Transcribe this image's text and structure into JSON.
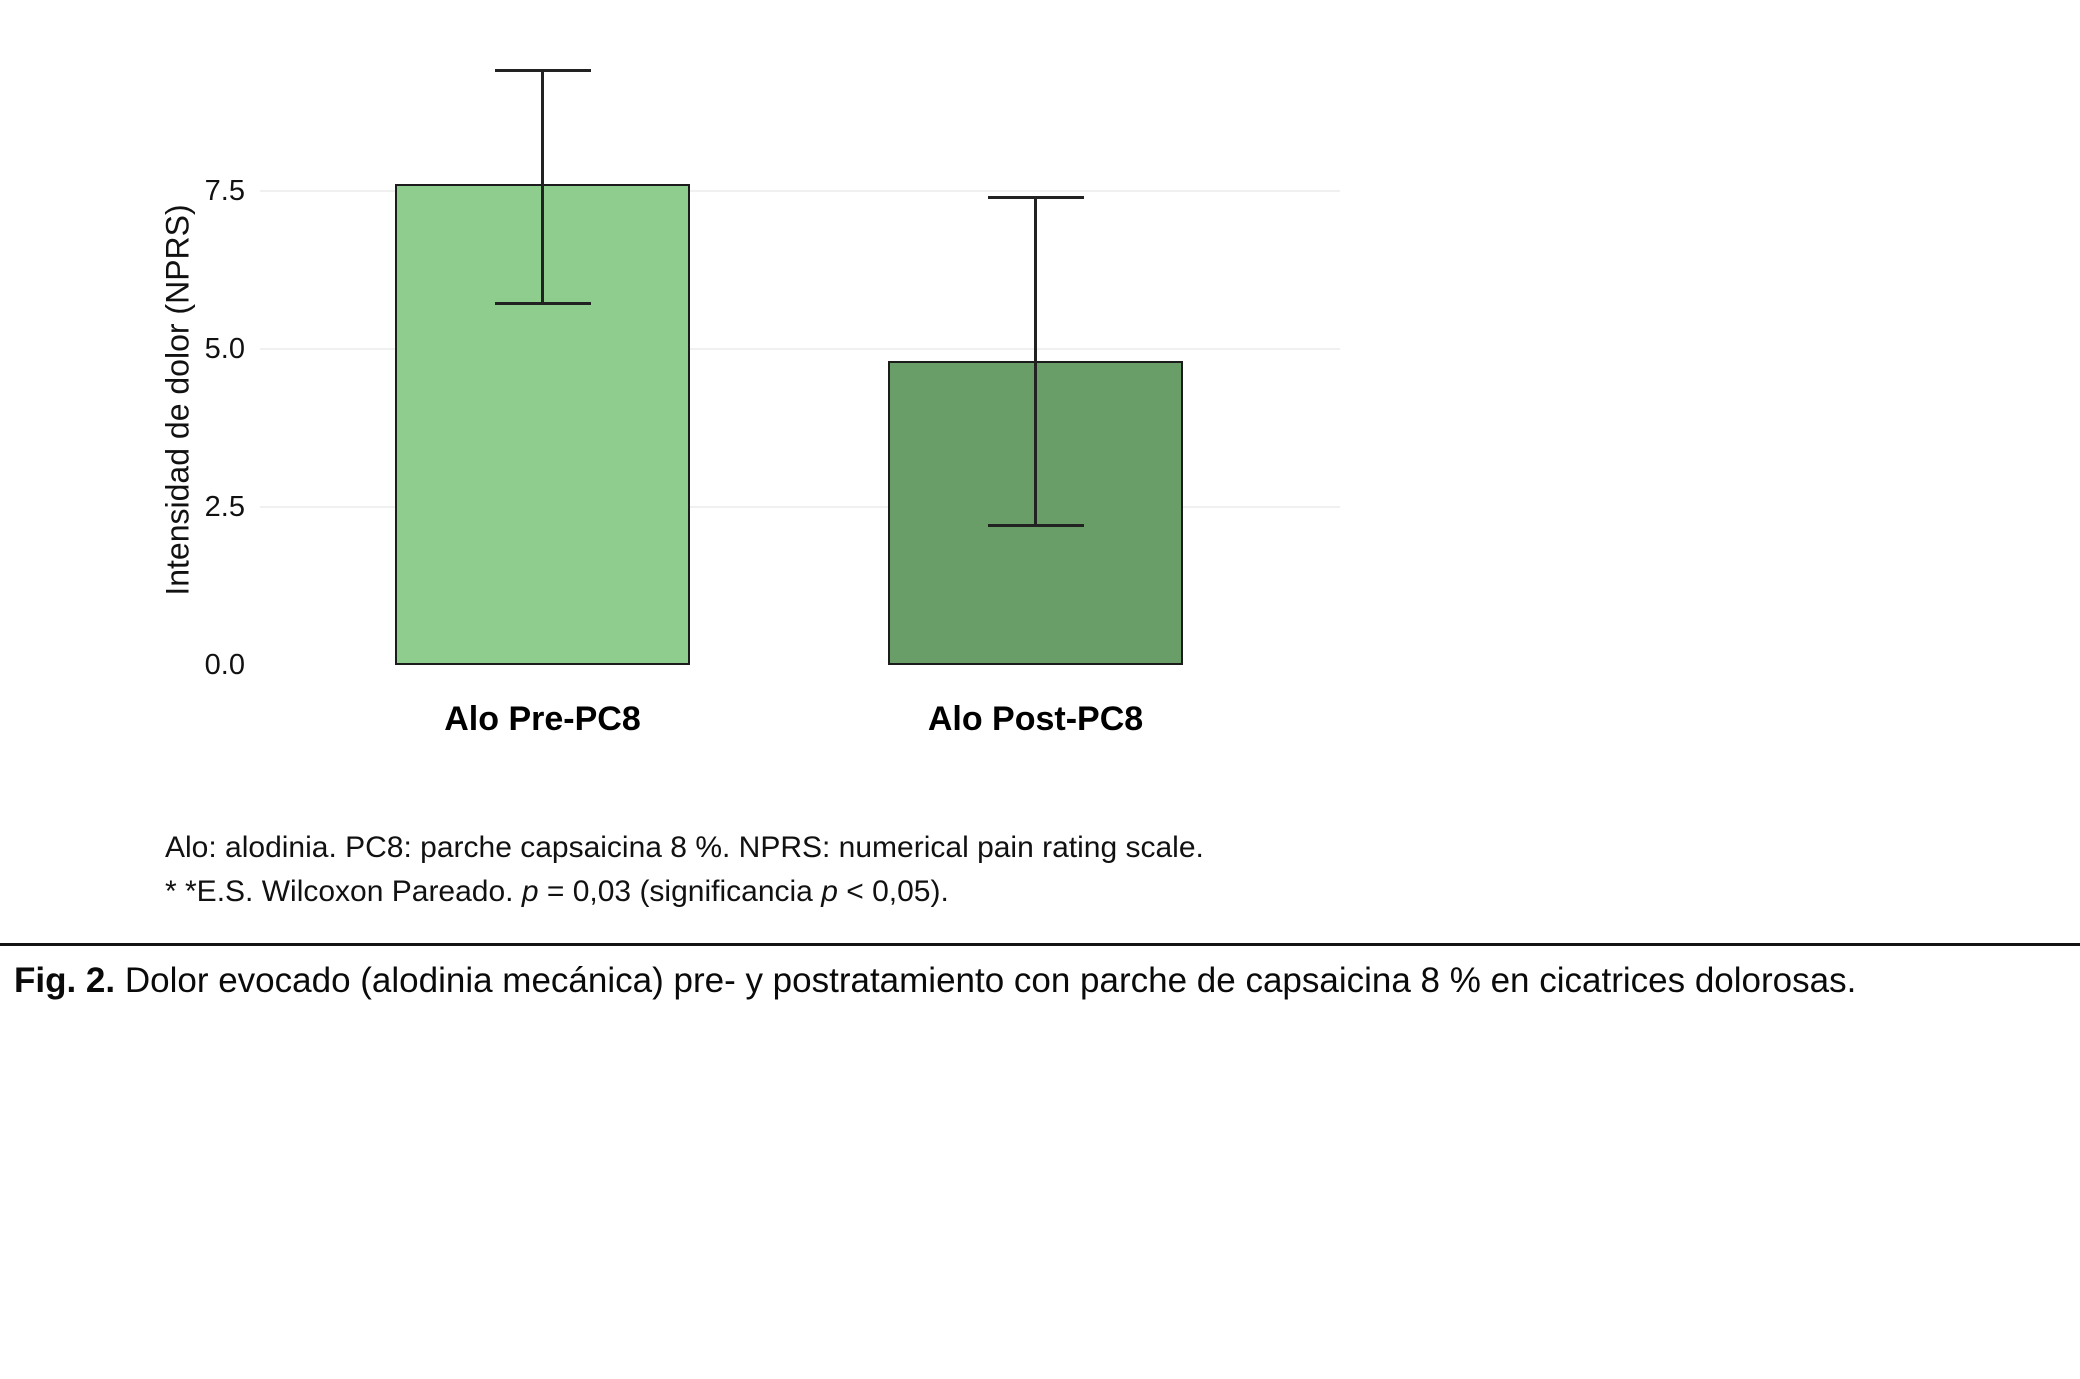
{
  "chart_data": {
    "type": "bar",
    "categories": [
      "Alo Pre-PC8",
      "Alo Post-PC8"
    ],
    "values": [
      7.6,
      4.8
    ],
    "error_bars": [
      {
        "low": 5.7,
        "high": 9.4
      },
      {
        "low": 2.2,
        "high": 7.4
      }
    ],
    "bar_colors": [
      "#8fcd8f",
      "#699e68"
    ],
    "bar_border_color": "#1c1c1c",
    "title": "",
    "xlabel": "",
    "ylabel": "Intensidad de dolor (NPRS)",
    "ylim": [
      0,
      9.8
    ],
    "ytick_labels": [
      "0.0",
      "2.5",
      "5.0",
      "7.5"
    ],
    "grid": true,
    "legend": "none"
  },
  "footnotes": {
    "line1": "Alo: alodinia. PC8: parche capsaicina 8 %. NPRS: numerical pain rating scale.",
    "line2": {
      "part1": "* *E.S. Wilcoxon Pareado. ",
      "p1": "p",
      "part2": " = 0,03 (significancia ",
      "p2": "p",
      "part3": " < 0,05)."
    }
  },
  "caption": {
    "label": "Fig. 2.",
    "text": "Dolor evocado (alodinia mecánica) pre- y postratamiento con parche de capsaicina 8 % en cicatrices dolorosas."
  }
}
